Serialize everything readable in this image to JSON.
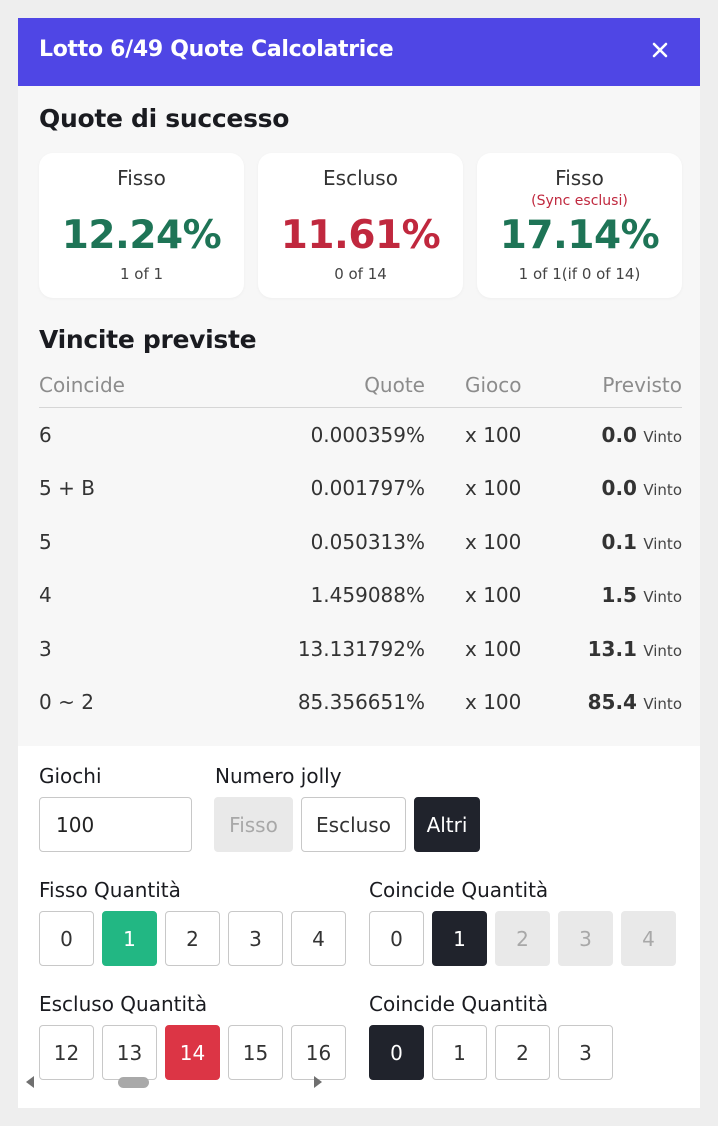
{
  "header": {
    "title": "Lotto 6/49 Quote Calcolatrice",
    "close_icon": "close-icon"
  },
  "odds_section": {
    "title": "Quote di successo",
    "cards": [
      {
        "label": "Fisso",
        "sub": "",
        "percent": "12.24%",
        "count": "1 of 1",
        "color": "#1e7456"
      },
      {
        "label": "Escluso",
        "sub": "",
        "percent": "11.61%",
        "count": "0 of 14",
        "color": "#c0283e"
      },
      {
        "label": "Fisso",
        "sub": "(Sync esclusi)",
        "percent": "17.14%",
        "count": "1 of 1(if 0 of 14)",
        "color": "#1e7456"
      }
    ]
  },
  "winnings": {
    "title": "Vincite previste",
    "columns": {
      "match": "Coincide",
      "odds": "Quote",
      "games": "Gioco",
      "expected": "Previsto"
    },
    "rows": [
      {
        "match": "6",
        "odds": "0.000359%",
        "games": "x 100",
        "expected": "0.0",
        "unit": "Vinto"
      },
      {
        "match": "5 + B",
        "odds": "0.001797%",
        "games": "x 100",
        "expected": "0.0",
        "unit": "Vinto"
      },
      {
        "match": "5",
        "odds": "0.050313%",
        "games": "x 100",
        "expected": "0.1",
        "unit": "Vinto"
      },
      {
        "match": "4",
        "odds": "1.459088%",
        "games": "x 100",
        "expected": "1.5",
        "unit": "Vinto"
      },
      {
        "match": "3",
        "odds": "13.131792%",
        "games": "x 100",
        "expected": "13.1",
        "unit": "Vinto"
      },
      {
        "match": "0 ~ 2",
        "odds": "85.356651%",
        "games": "x 100",
        "expected": "85.4",
        "unit": "Vinto"
      }
    ]
  },
  "form": {
    "games_label": "Giochi",
    "games_value": "100",
    "bonus_label": "Numero jolly",
    "bonus_options": [
      "Fisso",
      "Escluso",
      "Altri"
    ],
    "bonus_selected": "Altri",
    "fixed_qty_label": "Fisso Quantità",
    "fixed_qty_options": [
      "0",
      "1",
      "2",
      "3",
      "4"
    ],
    "fixed_qty_selected": "1",
    "match_qty_label_1": "Coincide Quantità",
    "match_qty_options_1": [
      "0",
      "1",
      "2",
      "3",
      "4"
    ],
    "match_qty_selected_1": "1",
    "excluded_qty_label": "Escluso Quantità",
    "excluded_qty_options": [
      "12",
      "13",
      "14",
      "15",
      "16"
    ],
    "excluded_qty_selected": "14",
    "match_qty_label_2": "Coincide Quantità",
    "match_qty_options_2": [
      "0",
      "1",
      "2",
      "3"
    ],
    "match_qty_selected_2": "0"
  }
}
